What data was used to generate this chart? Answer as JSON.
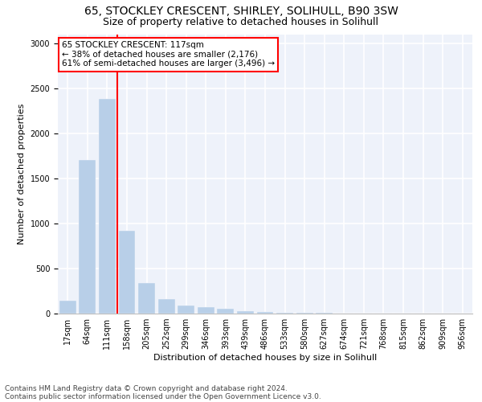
{
  "title_line1": "65, STOCKLEY CRESCENT, SHIRLEY, SOLIHULL, B90 3SW",
  "title_line2": "Size of property relative to detached houses in Solihull",
  "xlabel": "Distribution of detached houses by size in Solihull",
  "ylabel": "Number of detached properties",
  "categories": [
    "17sqm",
    "64sqm",
    "111sqm",
    "158sqm",
    "205sqm",
    "252sqm",
    "299sqm",
    "346sqm",
    "393sqm",
    "439sqm",
    "486sqm",
    "533sqm",
    "580sqm",
    "627sqm",
    "674sqm",
    "721sqm",
    "768sqm",
    "815sqm",
    "862sqm",
    "909sqm",
    "956sqm"
  ],
  "values": [
    140,
    1700,
    2380,
    920,
    340,
    160,
    90,
    70,
    50,
    30,
    20,
    10,
    5,
    5,
    3,
    2,
    2,
    1,
    1,
    1,
    1
  ],
  "bar_color": "#b8cfe8",
  "red_line_x": 2.5,
  "annotation_box_text": "65 STOCKLEY CRESCENT: 117sqm\n← 38% of detached houses are smaller (2,176)\n61% of semi-detached houses are larger (3,496) →",
  "ylim": [
    0,
    3100
  ],
  "yticks": [
    0,
    500,
    1000,
    1500,
    2000,
    2500,
    3000
  ],
  "footer_line1": "Contains HM Land Registry data © Crown copyright and database right 2024.",
  "footer_line2": "Contains public sector information licensed under the Open Government Licence v3.0.",
  "background_color": "#ffffff",
  "plot_bg_color": "#eef2fa",
  "grid_color": "#ffffff",
  "title_fontsize": 10,
  "subtitle_fontsize": 9,
  "axis_label_fontsize": 8,
  "tick_fontsize": 7,
  "footer_fontsize": 6.5,
  "annotation_fontsize": 7.5
}
